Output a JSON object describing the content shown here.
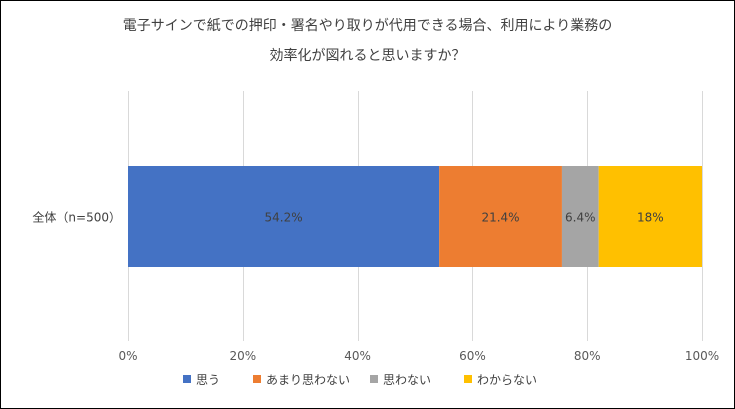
{
  "chart_data": {
    "type": "bar",
    "orientation": "horizontal",
    "stacked": true,
    "percent_stacked": true,
    "title_lines": [
      "電子サインで紙での押印・署名やり取りが代用できる場合、利用により業務の",
      "効率化が図れると思いますか？"
    ],
    "categories": [
      "全体（n=500）"
    ],
    "series": [
      {
        "name": "思う",
        "values": [
          54.2
        ],
        "label": "54.2%",
        "color": "#4472C4"
      },
      {
        "name": "あまり思わない",
        "values": [
          21.4
        ],
        "label": "21.4%",
        "color": "#ED7D31"
      },
      {
        "name": "思わない",
        "values": [
          6.4
        ],
        "label": "6.4%",
        "color": "#A5A5A5"
      },
      {
        "name": "わからない",
        "values": [
          18
        ],
        "label": "18%",
        "color": "#FFC000"
      }
    ],
    "x_ticks": [
      "0%",
      "20%",
      "40%",
      "60%",
      "80%",
      "100%"
    ],
    "xlim": [
      0,
      100
    ],
    "grid": true,
    "legend_position": "bottom"
  }
}
